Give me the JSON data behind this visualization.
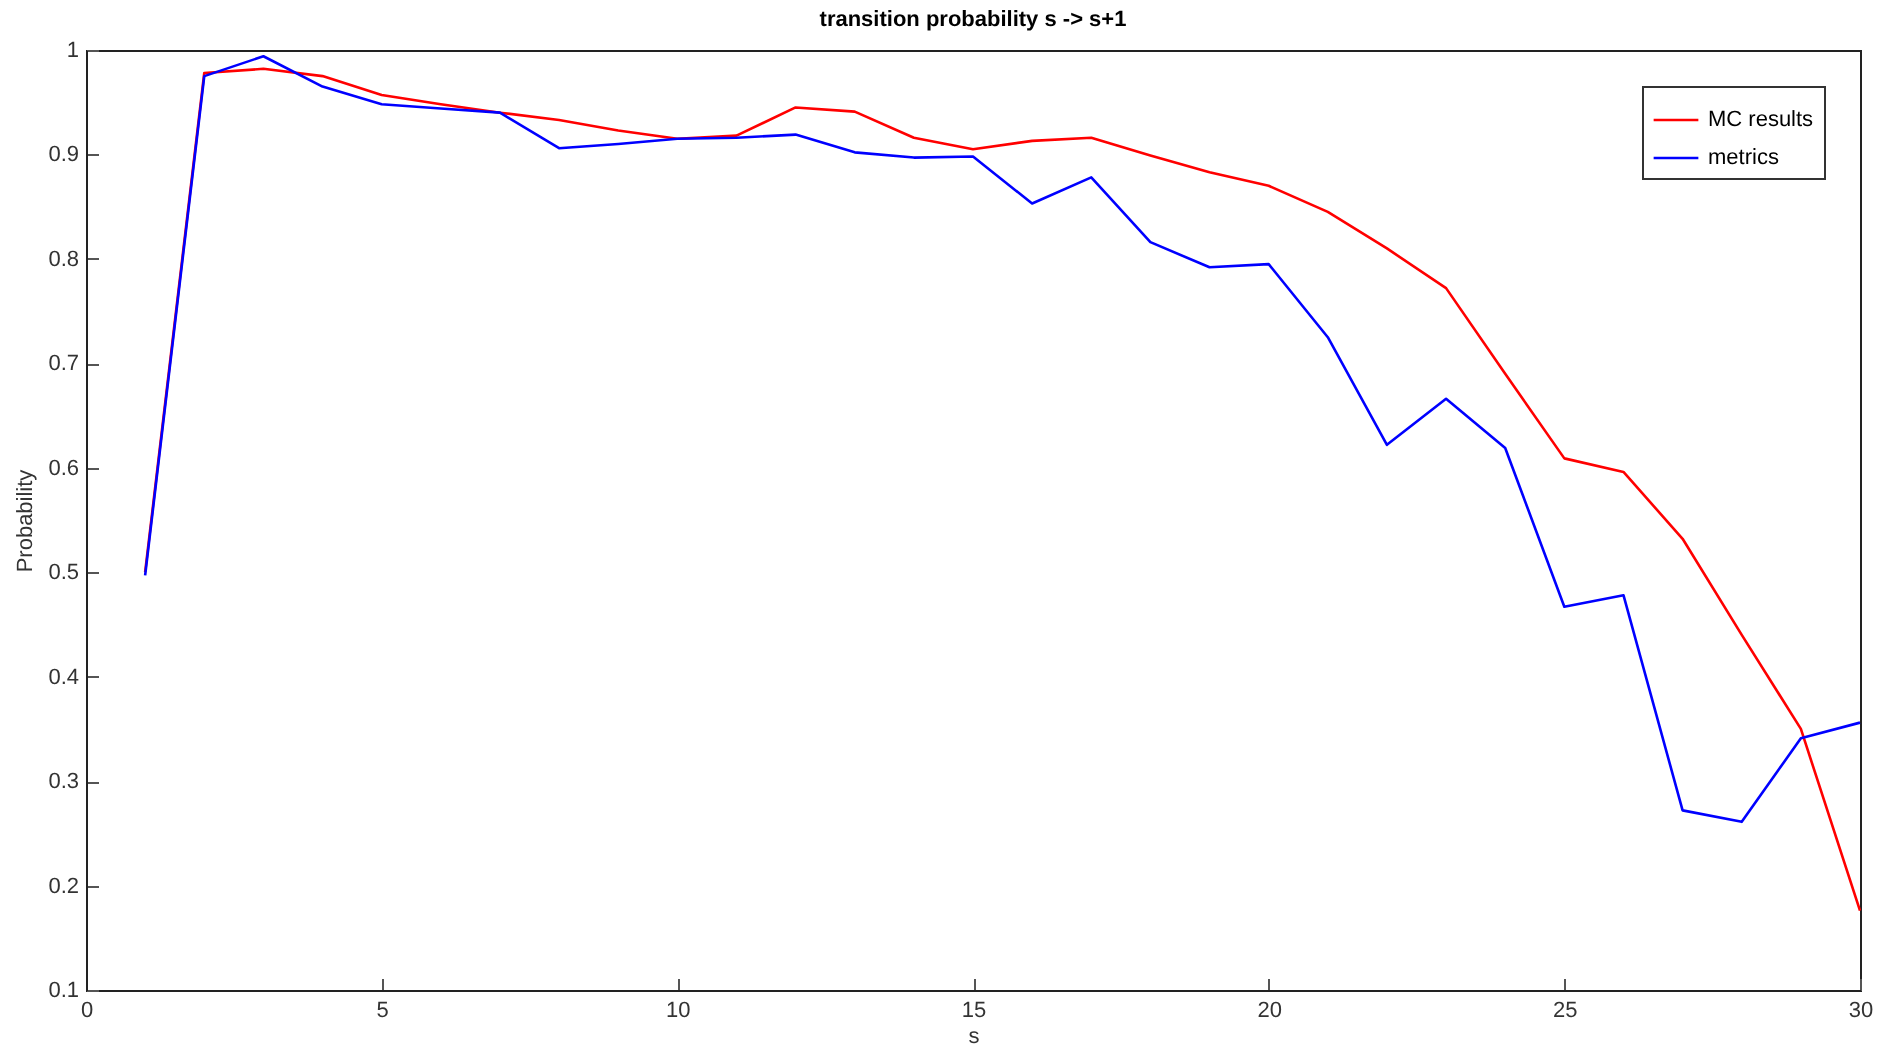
{
  "chart_data": {
    "type": "line",
    "title": "transition probability s -> s+1",
    "xlabel": "s",
    "ylabel": "Probability",
    "x": [
      1,
      2,
      3,
      4,
      5,
      6,
      7,
      8,
      9,
      10,
      11,
      12,
      13,
      14,
      15,
      16,
      17,
      18,
      19,
      20,
      21,
      22,
      23,
      24,
      25,
      26,
      27,
      28,
      29,
      30
    ],
    "series": [
      {
        "name": "MC results",
        "color": "#ff0000",
        "values": [
          0.5,
          0.978,
          0.982,
          0.975,
          0.957,
          0.948,
          0.94,
          0.933,
          0.923,
          0.915,
          0.918,
          0.945,
          0.941,
          0.916,
          0.905,
          0.913,
          0.916,
          0.899,
          0.883,
          0.87,
          0.845,
          0.81,
          0.772,
          0.69,
          0.609,
          0.596,
          0.532,
          0.44,
          0.35,
          0.176
        ]
      },
      {
        "name": "metrics",
        "color": "#0000ff",
        "values": [
          0.497,
          0.975,
          0.994,
          0.965,
          0.948,
          0.944,
          0.94,
          0.906,
          0.91,
          0.915,
          0.916,
          0.919,
          0.902,
          0.897,
          0.898,
          0.853,
          0.878,
          0.816,
          0.792,
          0.795,
          0.725,
          0.622,
          0.666,
          0.619,
          0.467,
          0.478,
          0.272,
          0.261,
          0.341,
          0.356
        ]
      }
    ],
    "xlim": [
      0,
      30
    ],
    "xticks": [
      0,
      5,
      10,
      15,
      20,
      25,
      30
    ],
    "ylim": [
      0.1,
      1
    ],
    "yticks": [
      0.1,
      0.2,
      0.3,
      0.4,
      0.5,
      0.6,
      0.7,
      0.8,
      0.9,
      {
        "value": 1,
        "label": "1"
      }
    ],
    "grid": false,
    "legend": "top right",
    "marker": "none",
    "line_style": "solid"
  }
}
